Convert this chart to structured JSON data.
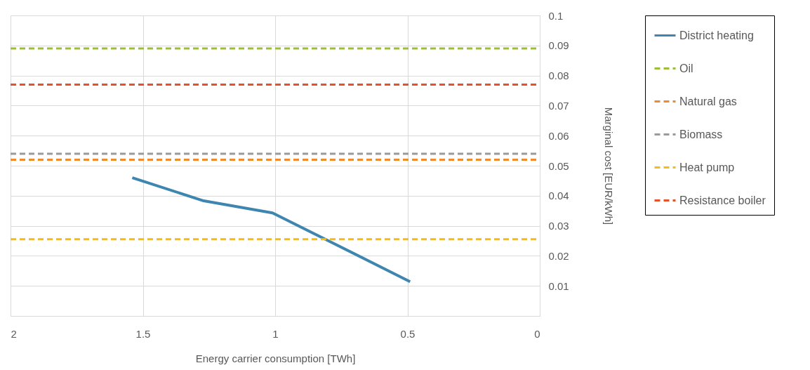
{
  "chart_data": {
    "type": "line",
    "xlabel": "Energy carrier consumption [TWh]",
    "ylabel": "Marginal cost [EUR/kWh]",
    "xlim": [
      2,
      0
    ],
    "xticks": [
      {
        "value": 2,
        "label": "2"
      },
      1.5,
      {
        "value": 1,
        "label": "1"
      },
      0.5,
      {
        "value": 0,
        "label": "0"
      }
    ],
    "ylim": [
      0,
      0.1
    ],
    "yticks": [
      {
        "value": 0,
        "label": null
      },
      0.01,
      0.02,
      0.03,
      0.04,
      0.05,
      0.06,
      0.07,
      0.08,
      0.09,
      0.1
    ],
    "grid": true,
    "legend": "right",
    "marker": "none",
    "series": [
      {
        "name": "District heating",
        "color": "#3e86b0",
        "line_style": "solid",
        "x": [
          1.54,
          1.27,
          1.01,
          0.49
        ],
        "values": [
          0.046,
          0.0383,
          0.0343,
          0.0114
        ]
      },
      {
        "name": "Oil",
        "color": "#9dbe3a",
        "line_style": "dashed",
        "x": [
          2,
          0
        ],
        "values": [
          0.089,
          0.089
        ]
      },
      {
        "name": "Natural gas",
        "color": "#f08a2c",
        "line_style": "dashed",
        "x": [
          2,
          0
        ],
        "values": [
          0.052,
          0.052
        ]
      },
      {
        "name": "Biomass",
        "color": "#9a9a9a",
        "line_style": "dashed",
        "x": [
          2,
          0
        ],
        "values": [
          0.054,
          0.054
        ]
      },
      {
        "name": "Heat pump",
        "color": "#f5bd14",
        "line_style": "dashed",
        "x": [
          2,
          0
        ],
        "values": [
          0.0255,
          0.0255
        ]
      },
      {
        "name": "Resistance boiler",
        "color": "#e5512a",
        "line_style": "dashed",
        "x": [
          2,
          0
        ],
        "values": [
          0.077,
          0.077
        ]
      }
    ]
  }
}
